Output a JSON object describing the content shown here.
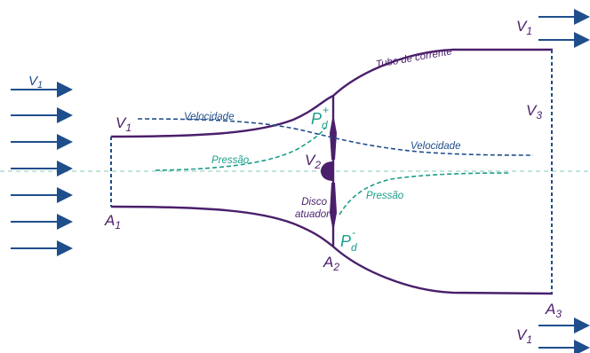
{
  "colors": {
    "tube": "#4a1f6b",
    "arrows": "#1f4e8c",
    "velocity": "#1f4e8c",
    "pressure": "#1a9e8a",
    "axis": "#9fd3c8"
  },
  "labels": {
    "v1_left": "V",
    "v1_left_sub": "1",
    "v1_inlet": "V",
    "v1_inlet_sub": "1",
    "a1": "A",
    "a1_sub": "1",
    "a2": "A",
    "a2_sub": "2",
    "a3": "A",
    "a3_sub": "3",
    "v2": "V",
    "v2_sub": "2",
    "v3": "V",
    "v3_sub": "3",
    "v1_top_right": "V",
    "v1_top_right_sub": "1",
    "v1_bottom_right": "V",
    "v1_bottom_right_sub": "1",
    "pd": "P",
    "pd_sub": "d",
    "pd_plus": "+",
    "pd_minus": "-",
    "tube_label": "Tubo de corrente",
    "velocity_left": "Velocidade",
    "velocity_right": "Velocidade",
    "pressure_left": "Pressão",
    "pressure_right": "Pressão",
    "disk_line1": "Disco",
    "disk_line2": "atuador"
  },
  "icons": {
    "inflow_arrows": "arrow-right-icon",
    "actuator": "actuator-disk-icon"
  }
}
